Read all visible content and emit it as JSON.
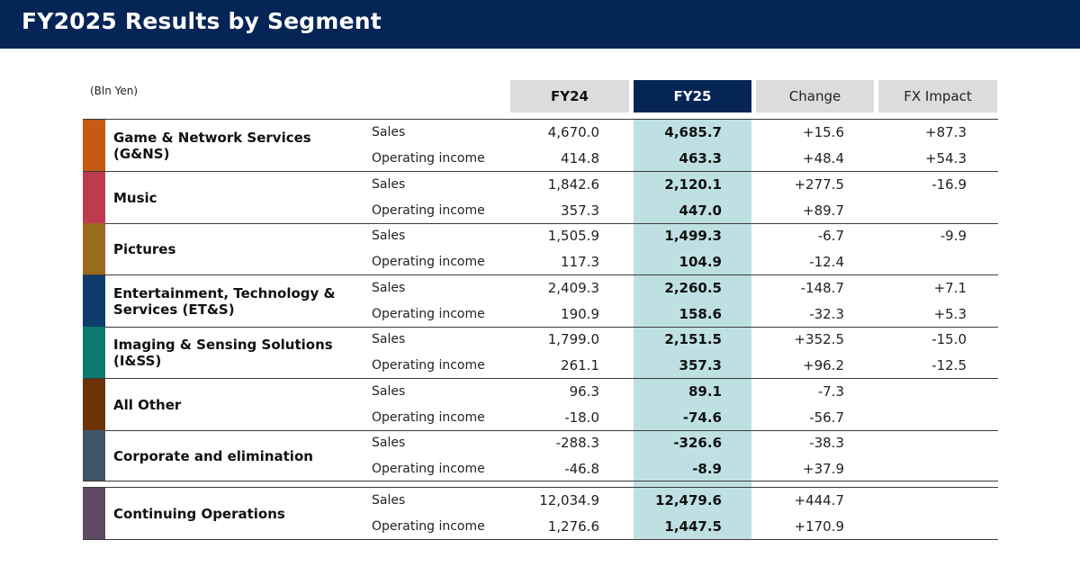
{
  "title": "FY2025 Results by Segment",
  "unit_label": "(Bln Yen)",
  "columns": {
    "fy24": "FY24",
    "fy25": "FY25",
    "change": "Change",
    "fx": "FX Impact"
  },
  "colors": {
    "title_bar": "#052556",
    "fy25_header": "#052556",
    "fy25_highlight": "#bfe0e3",
    "header_gray": "#dcdcdc"
  },
  "metrics": {
    "sales": "Sales",
    "oi": "Operating income"
  },
  "segments": [
    {
      "name": "Game & Network Services\n(G&NS)",
      "color": "#c55a11",
      "sales": {
        "fy24": "4,670.0",
        "fy25": "4,685.7",
        "change": "+15.6",
        "fx": "+87.3"
      },
      "oi": {
        "fy24": "414.8",
        "fy25": "463.3",
        "change": "+48.4",
        "fx": "+54.3"
      }
    },
    {
      "name": "Music",
      "color": "#bf3a4f",
      "sales": {
        "fy24": "1,842.6",
        "fy25": "2,120.1",
        "change": "+277.5",
        "fx": "-16.9"
      },
      "oi": {
        "fy24": "357.3",
        "fy25": "447.0",
        "change": "+89.7",
        "fx": ""
      }
    },
    {
      "name": "Pictures",
      "color": "#9a6b1d",
      "sales": {
        "fy24": "1,505.9",
        "fy25": "1,499.3",
        "change": "-6.7",
        "fx": "-9.9"
      },
      "oi": {
        "fy24": "117.3",
        "fy25": "104.9",
        "change": "-12.4",
        "fx": ""
      }
    },
    {
      "name": "Entertainment, Technology &\nServices (ET&S)",
      "color": "#0f3a6e",
      "sales": {
        "fy24": "2,409.3",
        "fy25": "2,260.5",
        "change": "-148.7",
        "fx": "+7.1"
      },
      "oi": {
        "fy24": "190.9",
        "fy25": "158.6",
        "change": "-32.3",
        "fx": "+5.3"
      }
    },
    {
      "name": "Imaging & Sensing Solutions\n(I&SS)",
      "color": "#0a7b6d",
      "sales": {
        "fy24": "1,799.0",
        "fy25": "2,151.5",
        "change": "+352.5",
        "fx": "-15.0"
      },
      "oi": {
        "fy24": "261.1",
        "fy25": "357.3",
        "change": "+96.2",
        "fx": "-12.5"
      }
    },
    {
      "name": "All Other",
      "color": "#6e3209",
      "sales": {
        "fy24": "96.3",
        "fy25": "89.1",
        "change": "-7.3",
        "fx": ""
      },
      "oi": {
        "fy24": "-18.0",
        "fy25": "-74.6",
        "change": "-56.7",
        "fx": ""
      }
    },
    {
      "name": "Corporate and elimination",
      "color": "#3e5568",
      "sales": {
        "fy24": "-288.3",
        "fy25": "-326.6",
        "change": "-38.3",
        "fx": ""
      },
      "oi": {
        "fy24": "-46.8",
        "fy25": "-8.9",
        "change": "+37.9",
        "fx": ""
      }
    },
    {
      "name": "Continuing Operations",
      "color": "#5f4a63",
      "sales": {
        "fy24": "12,034.9",
        "fy25": "12,479.6",
        "change": "+444.7",
        "fx": ""
      },
      "oi": {
        "fy24": "1,276.6",
        "fy25": "1,447.5",
        "change": "+170.9",
        "fx": ""
      }
    }
  ]
}
